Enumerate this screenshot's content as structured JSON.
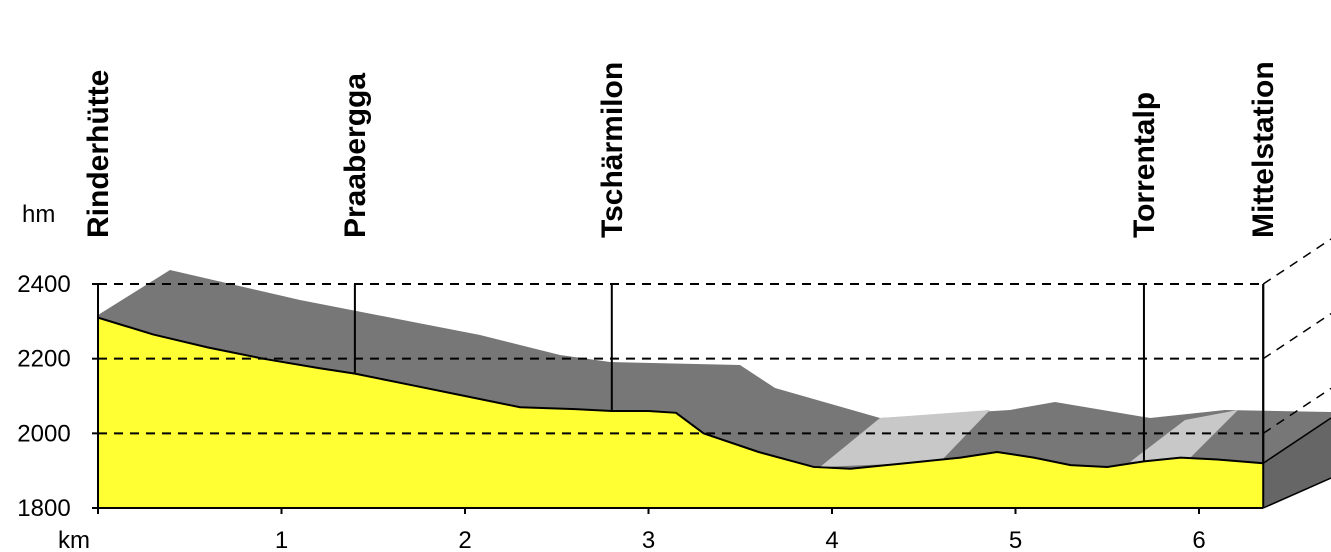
{
  "chart_data": {
    "type": "area",
    "title": "",
    "xlabel": "km",
    "ylabel": "hm",
    "xlim": [
      0,
      6.35
    ],
    "ylim": [
      1800,
      2400
    ],
    "x_ticks": [
      1,
      2,
      3,
      4,
      5,
      6
    ],
    "y_ticks": [
      1800,
      2000,
      2200,
      2400
    ],
    "grid_y": [
      2000,
      2200,
      2400
    ],
    "colors": {
      "profile": "#ffff33",
      "ridge": "#777777",
      "ridge_light": "#c8c8c8",
      "side": "#666666"
    },
    "profile": {
      "x": [
        0,
        0.3,
        0.6,
        0.9,
        1.2,
        1.4,
        1.7,
        2.0,
        2.3,
        2.6,
        2.8,
        3.0,
        3.15,
        3.3,
        3.6,
        3.9,
        4.1,
        4.4,
        4.7,
        4.9,
        5.1,
        5.3,
        5.5,
        5.7,
        5.9,
        6.1,
        6.35
      ],
      "y": [
        2310,
        2265,
        2230,
        2200,
        2175,
        2160,
        2130,
        2100,
        2070,
        2065,
        2060,
        2060,
        2055,
        2000,
        1950,
        1910,
        1905,
        1920,
        1935,
        1950,
        1935,
        1915,
        1910,
        1925,
        1935,
        1930,
        1920
      ]
    },
    "waypoints": [
      {
        "name": "Rinderhütte",
        "km": 0,
        "top": 2400
      },
      {
        "name": "Praabergga",
        "km": 1.4,
        "top": 2400
      },
      {
        "name": "Tschärmilon",
        "km": 2.8,
        "top": 2400
      },
      {
        "name": "Torrentalp",
        "km": 5.7,
        "top": 2400
      },
      {
        "name": "Mittelstation",
        "km": 6.35,
        "top": 2400
      }
    ]
  }
}
